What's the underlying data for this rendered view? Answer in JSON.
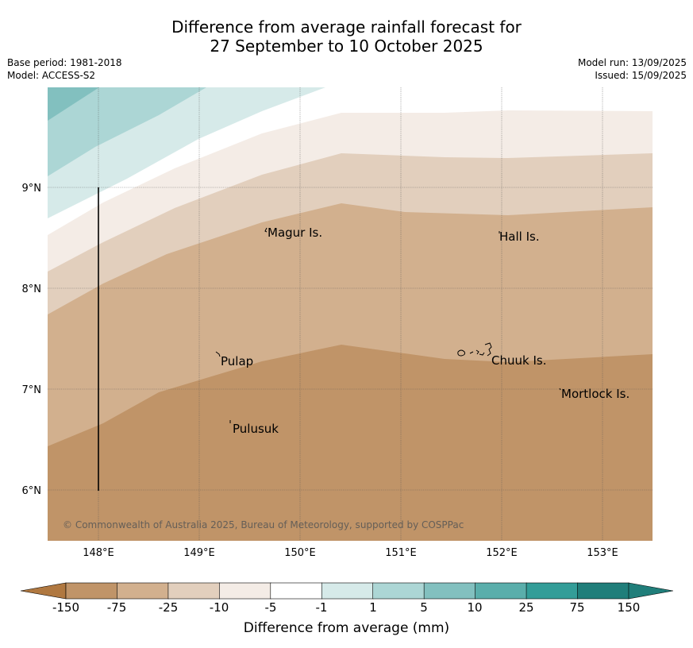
{
  "title_line1": "Difference from average rainfall forecast for",
  "title_line2": "27 September to 10 October 2025",
  "meta_left": {
    "base_period": "Base period: 1981-2018",
    "model": "Model: ACCESS-S2"
  },
  "meta_right": {
    "model_run": "Model run: 13/09/2025",
    "issued": "Issued: 15/09/2025"
  },
  "lat_ticks": [
    "9°N",
    "8°N",
    "7°N",
    "6°N"
  ],
  "lon_ticks": [
    "148°E",
    "149°E",
    "150°E",
    "151°E",
    "152°E",
    "153°E"
  ],
  "places": [
    {
      "name": "Magur Is."
    },
    {
      "name": "Hall Is."
    },
    {
      "name": "Pulap"
    },
    {
      "name": "Chuuk Is."
    },
    {
      "name": "Mortlock Is."
    },
    {
      "name": "Pulusuk"
    }
  ],
  "copyright": "© Commonwealth of Australia 2025, Bureau of Meteorology, supported by COSPPac",
  "colorbar": {
    "title": "Difference from average (mm)",
    "labels": [
      "-150",
      "-75",
      "-25",
      "-10",
      "-5",
      "-1",
      "1",
      "5",
      "10",
      "25",
      "75",
      "150"
    ],
    "colors": [
      "#b07840",
      "#c09468",
      "#d2b08e",
      "#e2cfbd",
      "#f4ece6",
      "#ffffff",
      "#d6eae9",
      "#acd6d5",
      "#82c0bf",
      "#5aaeab",
      "#339d98",
      "#207e7a"
    ]
  }
}
